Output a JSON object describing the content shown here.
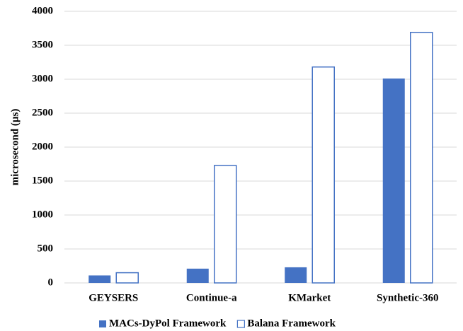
{
  "chart_data": {
    "type": "bar",
    "ylabel": "microsecond  (µs)",
    "categories": [
      "GEYSERS",
      "Continue-a",
      "KMarket",
      "Synthetic-360"
    ],
    "series": [
      {
        "name": "MACs-DyPol Framework",
        "color": "#4472c4",
        "filled": true,
        "values": [
          110,
          210,
          230,
          3010
        ]
      },
      {
        "name": "Balana Framework",
        "color": "#4472c4",
        "filled": false,
        "values": [
          150,
          1730,
          3180,
          3690
        ]
      }
    ],
    "ylim": [
      0,
      4000
    ],
    "yticks": [
      0,
      500,
      1000,
      1500,
      2000,
      2500,
      3000,
      3500,
      4000
    ],
    "grid": true,
    "legend": "bottom"
  }
}
